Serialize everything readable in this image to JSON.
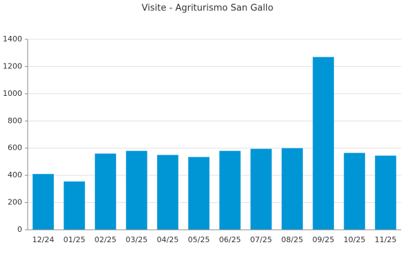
{
  "chart_data": {
    "type": "bar",
    "title": "Visite - Agriturismo San Gallo",
    "categories": [
      "12/24",
      "01/25",
      "02/25",
      "03/25",
      "04/25",
      "05/25",
      "06/25",
      "07/25",
      "08/25",
      "09/25",
      "10/25",
      "11/25"
    ],
    "values": [
      410,
      355,
      560,
      580,
      550,
      535,
      580,
      595,
      600,
      1270,
      565,
      545
    ],
    "color": "#0096d6",
    "ylim": [
      0,
      1400
    ],
    "yticks": [
      0,
      200,
      400,
      600,
      800,
      1000,
      1200,
      1400
    ],
    "grid": true
  }
}
